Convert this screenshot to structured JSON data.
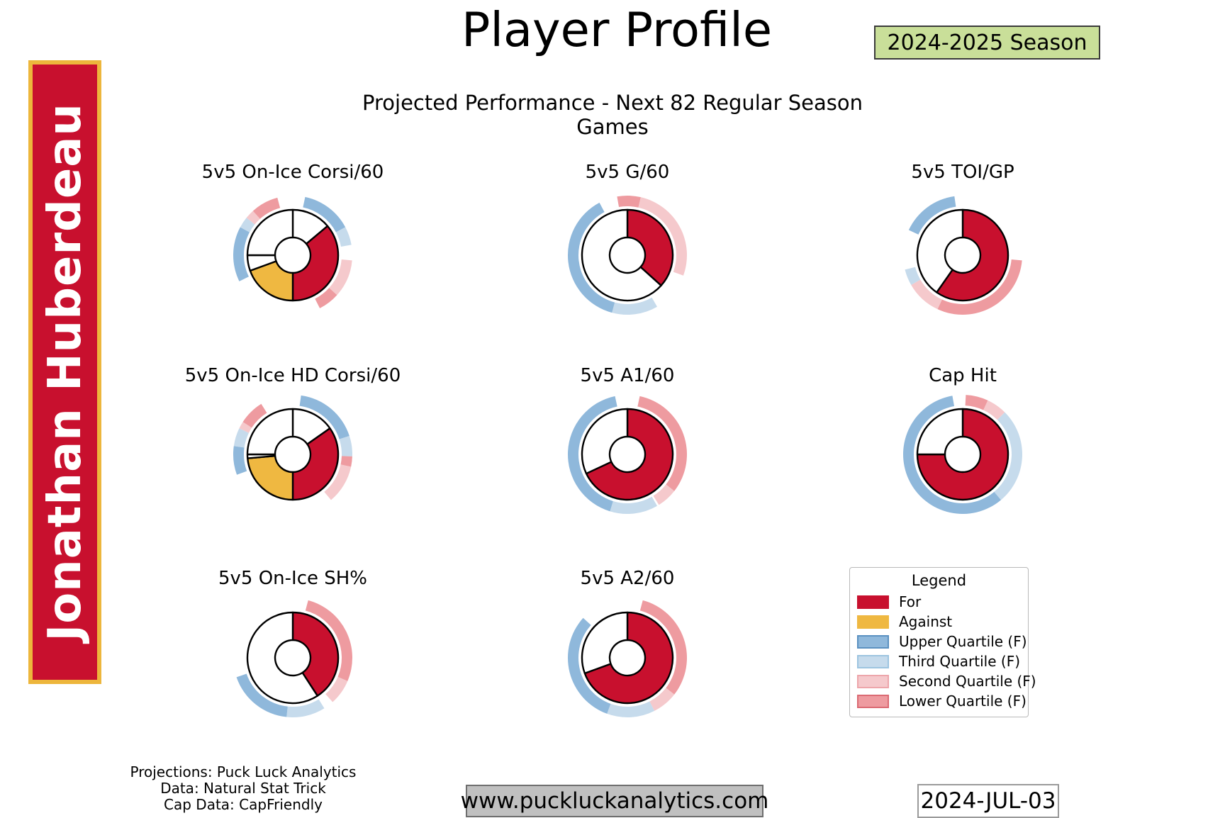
{
  "header": {
    "title": "Player Profile",
    "season_badge": "2024-2025 Season",
    "subtitle": "Projected Performance - Next 82 Regular Season Games"
  },
  "player_banner": {
    "name": "Jonathan Huberdeau"
  },
  "colors": {
    "for": "#C8102E",
    "against": "#EFB841",
    "upper_quartile": "#8FB8DB",
    "third_quartile": "#C6DBEC",
    "second_quartile": "#F5C9CC",
    "lower_quartile": "#EE9BA0",
    "none": "#FFFFFF",
    "outline": "#000000",
    "badge_bg": "#C9DF99",
    "banner_red": "#C8102E",
    "banner_gold": "#EDB63C",
    "website_box_bg": "#C0C0C0"
  },
  "legend": {
    "title": "Legend",
    "items": [
      {
        "label": "For",
        "fill_key": "for",
        "edge": "#C8102E"
      },
      {
        "label": "Against",
        "fill_key": "against",
        "edge": "#EFB841"
      },
      {
        "label": "Upper Quartile (F)",
        "fill_key": "upper_quartile",
        "edge": "#5B91C1"
      },
      {
        "label": "Third Quartile (F)",
        "fill_key": "third_quartile",
        "edge": "#9DC4E0"
      },
      {
        "label": "Second Quartile (F)",
        "fill_key": "second_quartile",
        "edge": "#EDA6AB"
      },
      {
        "label": "Lower Quartile (F)",
        "fill_key": "lower_quartile",
        "edge": "#DB6A73"
      }
    ]
  },
  "chart_data": [
    {
      "type": "donut",
      "title": "5v5 On-Ice Corsi/60",
      "row": 0,
      "col": 0,
      "angle_convention": "degrees clockwise from 12 o'clock",
      "wedges": [
        {
          "segment": "none",
          "start": 0,
          "end": 50
        },
        {
          "segment": "for",
          "start": 50,
          "end": 180
        },
        {
          "segment": "against",
          "start": 180,
          "end": 250
        },
        {
          "segment": "none",
          "start": 250,
          "end": 270
        },
        {
          "segment": "none",
          "start": 270,
          "end": 360
        }
      ],
      "quartile_arcs": [
        {
          "band": "upper",
          "start": 12,
          "end": 62
        },
        {
          "band": "third",
          "start": 62,
          "end": 80
        },
        {
          "band": "second",
          "start": 95,
          "end": 132
        },
        {
          "band": "lower",
          "start": 132,
          "end": 153
        },
        {
          "band": "upper",
          "start": 244,
          "end": 298
        },
        {
          "band": "third",
          "start": 298,
          "end": 309
        },
        {
          "band": "second",
          "start": 309,
          "end": 318
        },
        {
          "band": "lower",
          "start": 318,
          "end": 345
        }
      ]
    },
    {
      "type": "donut",
      "title": "5v5 G/60",
      "row": 0,
      "col": 1,
      "wedges": [
        {
          "segment": "for",
          "start": 0,
          "end": 132
        },
        {
          "segment": "none",
          "start": 132,
          "end": 360
        }
      ],
      "quartile_arcs": [
        {
          "band": "lower",
          "start": 350,
          "end": 373
        },
        {
          "band": "second",
          "start": 13,
          "end": 110
        },
        {
          "band": "third",
          "start": 150,
          "end": 195
        },
        {
          "band": "upper",
          "start": 195,
          "end": 332
        }
      ]
    },
    {
      "type": "donut",
      "title": "5v5 TOI/GP",
      "row": 0,
      "col": 2,
      "wedges": [
        {
          "segment": "for",
          "start": 0,
          "end": 215
        },
        {
          "segment": "none",
          "start": 215,
          "end": 360
        }
      ],
      "quartile_arcs": [
        {
          "band": "lower",
          "start": 95,
          "end": 205
        },
        {
          "band": "second",
          "start": 205,
          "end": 240
        },
        {
          "band": "third",
          "start": 240,
          "end": 256
        },
        {
          "band": "upper",
          "start": 295,
          "end": 352
        }
      ]
    },
    {
      "type": "donut",
      "title": "5v5 On-Ice HD Corsi/60",
      "row": 1,
      "col": 0,
      "wedges": [
        {
          "segment": "none",
          "start": 0,
          "end": 55
        },
        {
          "segment": "for",
          "start": 55,
          "end": 180
        },
        {
          "segment": "against",
          "start": 180,
          "end": 265
        },
        {
          "segment": "none",
          "start": 265,
          "end": 270
        },
        {
          "segment": "none",
          "start": 270,
          "end": 360
        }
      ],
      "quartile_arcs": [
        {
          "band": "upper",
          "start": 8,
          "end": 72
        },
        {
          "band": "third",
          "start": 72,
          "end": 92
        },
        {
          "band": "lower",
          "start": 92,
          "end": 102
        },
        {
          "band": "second",
          "start": 102,
          "end": 140
        },
        {
          "band": "upper",
          "start": 250,
          "end": 278
        },
        {
          "band": "third",
          "start": 278,
          "end": 296
        },
        {
          "band": "second",
          "start": 296,
          "end": 303
        },
        {
          "band": "lower",
          "start": 303,
          "end": 328
        }
      ]
    },
    {
      "type": "donut",
      "title": "5v5 A1/60",
      "row": 1,
      "col": 1,
      "wedges": [
        {
          "segment": "for",
          "start": 0,
          "end": 245
        },
        {
          "segment": "none",
          "start": 245,
          "end": 360
        }
      ],
      "quartile_arcs": [
        {
          "band": "lower",
          "start": 12,
          "end": 128
        },
        {
          "band": "second",
          "start": 128,
          "end": 148
        },
        {
          "band": "third",
          "start": 150,
          "end": 197
        },
        {
          "band": "upper",
          "start": 197,
          "end": 348
        }
      ]
    },
    {
      "type": "donut",
      "title": "Cap Hit",
      "row": 1,
      "col": 2,
      "wedges": [
        {
          "segment": "for",
          "start": 0,
          "end": 270
        },
        {
          "segment": "none",
          "start": 270,
          "end": 360
        }
      ],
      "quartile_arcs": [
        {
          "band": "lower",
          "start": 3,
          "end": 25
        },
        {
          "band": "second",
          "start": 25,
          "end": 45
        },
        {
          "band": "third",
          "start": 45,
          "end": 140
        },
        {
          "band": "upper",
          "start": 140,
          "end": 350
        }
      ]
    },
    {
      "type": "donut",
      "title": "5v5 On-Ice SH%",
      "row": 2,
      "col": 0,
      "wedges": [
        {
          "segment": "for",
          "start": 0,
          "end": 147
        },
        {
          "segment": "none",
          "start": 147,
          "end": 360
        }
      ],
      "quartile_arcs": [
        {
          "band": "lower",
          "start": 15,
          "end": 113
        },
        {
          "band": "second",
          "start": 113,
          "end": 138
        },
        {
          "band": "third",
          "start": 148,
          "end": 186
        },
        {
          "band": "upper",
          "start": 186,
          "end": 251
        }
      ]
    },
    {
      "type": "donut",
      "title": "5v5 A2/60",
      "row": 2,
      "col": 1,
      "wedges": [
        {
          "segment": "for",
          "start": 0,
          "end": 250
        },
        {
          "segment": "none",
          "start": 250,
          "end": 360
        }
      ],
      "quartile_arcs": [
        {
          "band": "lower",
          "start": 15,
          "end": 128
        },
        {
          "band": "second",
          "start": 128,
          "end": 153
        },
        {
          "band": "third",
          "start": 153,
          "end": 200
        },
        {
          "band": "upper",
          "start": 200,
          "end": 312
        }
      ]
    }
  ],
  "footer": {
    "credits": [
      "Projections: Puck Luck Analytics",
      "Data: Natural Stat Trick",
      "Cap Data: CapFriendly"
    ],
    "website": "www.puckluckanalytics.com",
    "date": "2024-JUL-03"
  }
}
